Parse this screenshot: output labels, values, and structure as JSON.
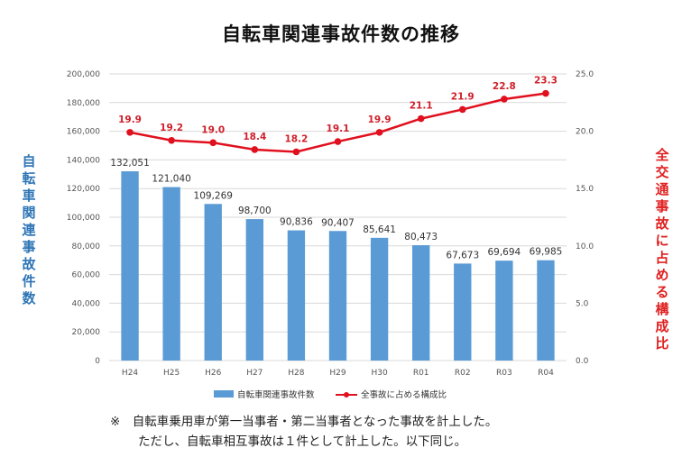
{
  "title": "自転車関連事故件数の推移",
  "note": {
    "line1": "※　自転車乗用車が第一当事者・第二当事者となった事故を計上した。",
    "line2": "ただし、自転車相互事故は１件として計上した。以下同じ。"
  },
  "colors": {
    "bar": "#5b9bd5",
    "line": "#e0101e",
    "left_axis_label": "#2e75b6",
    "right_axis_label": "#e02020"
  },
  "chart_data": {
    "type": "bar",
    "title": "自転車関連事故件数の推移",
    "ylabel": "自転車関連事故件数",
    "y2label": "全交通事故に占める構成比",
    "categories": [
      "H24",
      "H25",
      "H26",
      "H27",
      "H28",
      "H29",
      "H30",
      "R01",
      "R02",
      "R03",
      "R04"
    ],
    "ylim": [
      0,
      200000
    ],
    "y2lim": [
      0,
      25
    ],
    "yticks": [
      "0",
      "20,000",
      "40,000",
      "60,000",
      "80,000",
      "100,000",
      "120,000",
      "140,000",
      "160,000",
      "180,000",
      "200,000"
    ],
    "y2ticks": [
      "0.0",
      "5.0",
      "10.0",
      "15.0",
      "20.0",
      "25.0"
    ],
    "series": [
      {
        "name": "自転車関連事故件数",
        "type": "bar",
        "axis": "left",
        "values": [
          132051,
          121040,
          109269,
          98700,
          90836,
          90407,
          85641,
          80473,
          67673,
          69694,
          69985
        ],
        "labels": [
          "132,051",
          "121,040",
          "109,269",
          "98,700",
          "90,836",
          "90,407",
          "85,641",
          "80,473",
          "67,673",
          "69,694",
          "69,985"
        ]
      },
      {
        "name": "全事故に占める構成比",
        "type": "line",
        "axis": "right",
        "values": [
          19.9,
          19.2,
          19.0,
          18.4,
          18.2,
          19.1,
          19.9,
          21.1,
          21.9,
          22.8,
          23.3
        ],
        "labels": [
          "19.9",
          "19.2",
          "19.0",
          "18.4",
          "18.2",
          "19.1",
          "19.9",
          "21.1",
          "21.9",
          "22.8",
          "23.3"
        ]
      }
    ],
    "grid": true,
    "legend": "bottom"
  }
}
